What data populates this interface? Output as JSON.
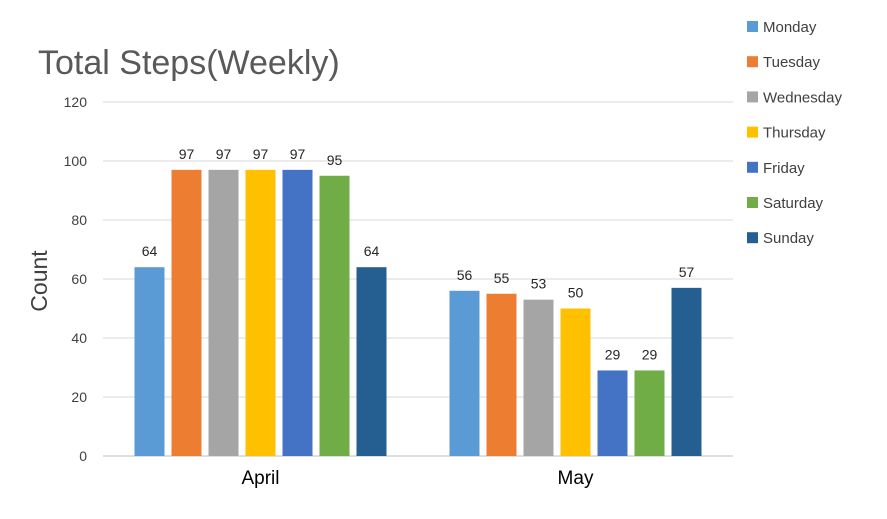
{
  "chart_data": {
    "type": "bar",
    "title": "Total Steps(Weekly)",
    "xlabel": "",
    "ylabel": "Count",
    "ylim": [
      0,
      120
    ],
    "yticks": [
      0,
      20,
      40,
      60,
      80,
      100,
      120
    ],
    "grid": true,
    "legend_position": "right",
    "categories": [
      "April",
      "May"
    ],
    "series": [
      {
        "name": "Monday",
        "color": "#5B9BD5",
        "values": [
          64,
          56
        ]
      },
      {
        "name": "Tuesday",
        "color": "#ED7D31",
        "values": [
          97,
          55
        ]
      },
      {
        "name": "Wednesday",
        "color": "#A5A5A5",
        "values": [
          97,
          53
        ]
      },
      {
        "name": "Thursday",
        "color": "#FFC000",
        "values": [
          97,
          50
        ]
      },
      {
        "name": "Friday",
        "color": "#4472C4",
        "values": [
          97,
          29
        ]
      },
      {
        "name": "Saturday",
        "color": "#70AD47",
        "values": [
          95,
          29
        ]
      },
      {
        "name": "Sunday",
        "color": "#255E91",
        "values": [
          64,
          57
        ]
      }
    ]
  }
}
